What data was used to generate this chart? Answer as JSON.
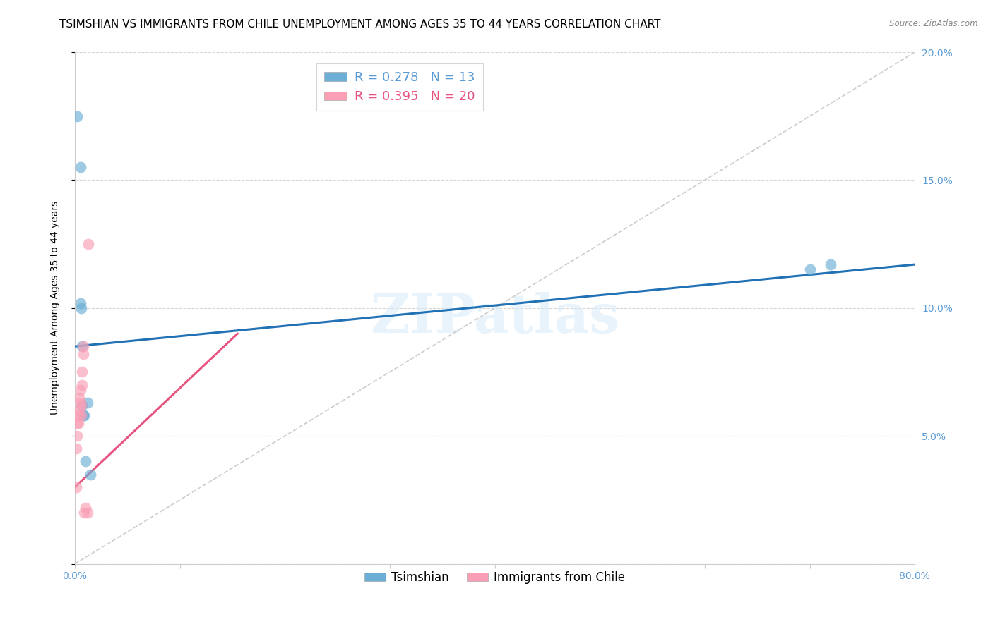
{
  "title": "TSIMSHIAN VS IMMIGRANTS FROM CHILE UNEMPLOYMENT AMONG AGES 35 TO 44 YEARS CORRELATION CHART",
  "source": "Source: ZipAtlas.com",
  "ylabel": "Unemployment Among Ages 35 to 44 years",
  "xlim": [
    0,
    0.8
  ],
  "ylim": [
    0,
    0.2
  ],
  "series1_name": "Tsimshian",
  "series1_R": 0.278,
  "series1_N": 13,
  "series1_color": "#6baed6",
  "series1_x": [
    0.002,
    0.005,
    0.005,
    0.006,
    0.007,
    0.007,
    0.008,
    0.009,
    0.01,
    0.012,
    0.015,
    0.7,
    0.72
  ],
  "series1_y": [
    0.175,
    0.155,
    0.102,
    0.1,
    0.085,
    0.062,
    0.058,
    0.058,
    0.04,
    0.063,
    0.035,
    0.115,
    0.117
  ],
  "series2_name": "Immigrants from Chile",
  "series2_R": 0.395,
  "series2_N": 20,
  "series2_color": "#fa9fb5",
  "series2_x": [
    0.001,
    0.001,
    0.002,
    0.002,
    0.003,
    0.003,
    0.004,
    0.004,
    0.005,
    0.005,
    0.006,
    0.006,
    0.007,
    0.007,
    0.008,
    0.008,
    0.009,
    0.01,
    0.012,
    0.013
  ],
  "series2_y": [
    0.045,
    0.03,
    0.055,
    0.05,
    0.058,
    0.055,
    0.065,
    0.06,
    0.068,
    0.063,
    0.058,
    0.062,
    0.075,
    0.07,
    0.085,
    0.082,
    0.02,
    0.022,
    0.02,
    0.125
  ],
  "watermark": "ZIPatlas",
  "background_color": "#ffffff",
  "grid_color": "#cccccc",
  "axis_color": "#5b9bd5",
  "title_fontsize": 11,
  "label_fontsize": 10,
  "tick_fontsize": 10,
  "blue_line_x": [
    0.0,
    0.8
  ],
  "blue_line_y": [
    0.085,
    0.117
  ],
  "pink_line_x": [
    0.0,
    0.155
  ],
  "pink_line_y": [
    0.03,
    0.09
  ],
  "dash_line_x": [
    0.0,
    0.8
  ],
  "dash_line_y": [
    0.0,
    0.2
  ]
}
